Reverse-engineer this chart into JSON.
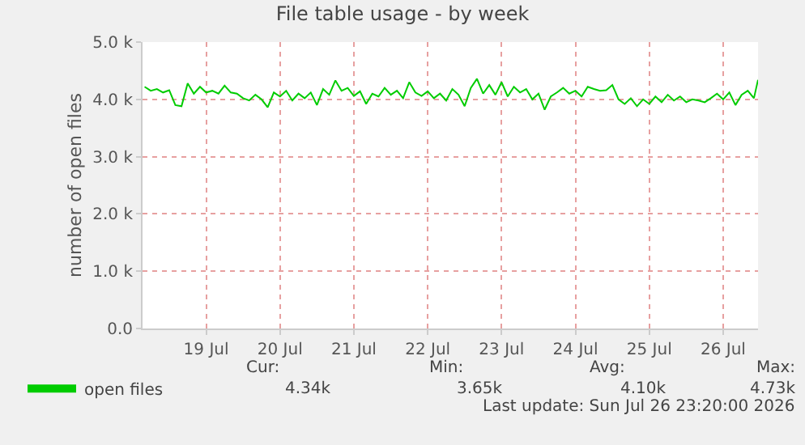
{
  "chart_data": {
    "type": "line",
    "title": "File table usage - by week",
    "ylabel": "number of open files",
    "series": [
      {
        "name": "open files",
        "color": "#00cc00",
        "x": [
          "--07-18T16:00",
          "--07-18T18:00",
          "--07-18T20:00",
          "--07-18T22:00",
          "--07-19T00:00",
          "--07-19T02:00",
          "--07-19T04:00",
          "--07-19T06:00",
          "--07-19T08:00",
          "--07-19T10:00",
          "--07-19T12:00",
          "--07-19T14:00",
          "--07-19T16:00",
          "--07-19T18:00",
          "--07-19T20:00",
          "--07-19T22:00",
          "--07-20T00:00",
          "--07-20T02:00",
          "--07-20T04:00",
          "--07-20T06:00",
          "--07-20T08:00",
          "--07-20T10:00",
          "--07-20T12:00",
          "--07-20T14:00",
          "--07-20T16:00",
          "--07-20T18:00",
          "--07-20T20:00",
          "--07-20T22:00",
          "--07-21T00:00",
          "--07-21T02:00",
          "--07-21T04:00",
          "--07-21T06:00",
          "--07-21T08:00",
          "--07-21T10:00",
          "--07-21T12:00",
          "--07-21T14:00",
          "--07-21T16:00",
          "--07-21T18:00",
          "--07-21T20:00",
          "--07-21T22:00",
          "--07-22T00:00",
          "--07-22T02:00",
          "--07-22T04:00",
          "--07-22T06:00",
          "--07-22T08:00",
          "--07-22T10:00",
          "--07-22T12:00",
          "--07-22T14:00",
          "--07-22T16:00",
          "--07-22T18:00",
          "--07-22T20:00",
          "--07-22T22:00",
          "--07-23T00:00",
          "--07-23T02:00",
          "--07-23T04:00",
          "--07-23T06:00",
          "--07-23T08:00",
          "--07-23T10:00",
          "--07-23T12:00",
          "--07-23T14:00",
          "--07-23T16:00",
          "--07-23T18:00",
          "--07-23T20:00",
          "--07-23T22:00",
          "--07-24T00:00",
          "--07-24T02:00",
          "--07-24T04:00",
          "--07-24T06:00",
          "--07-24T08:00",
          "--07-24T10:00",
          "--07-24T12:00",
          "--07-24T14:00",
          "--07-24T16:00",
          "--07-24T18:00",
          "--07-24T20:00",
          "--07-24T22:00",
          "--07-25T00:00",
          "--07-25T02:00",
          "--07-25T04:00",
          "--07-25T06:00",
          "--07-25T08:00",
          "--07-25T10:00",
          "--07-25T12:00",
          "--07-25T14:00",
          "--07-25T16:00",
          "--07-25T18:00",
          "--07-25T20:00",
          "--07-25T22:00",
          "--07-26T00:00",
          "--07-26T02:00",
          "--07-26T04:00",
          "--07-26T06:00",
          "--07-26T08:00",
          "--07-26T10:00",
          "--07-26T12:00",
          "--07-26T14:00",
          "--07-26T16:00",
          "--07-26T18:00",
          "--07-26T20:00",
          "--07-26T22:00",
          "--07-26T23:20"
        ],
        "values": [
          4220,
          4150,
          4180,
          4120,
          4160,
          3900,
          3880,
          4280,
          4100,
          4220,
          4120,
          4150,
          4100,
          4240,
          4120,
          4100,
          4020,
          3980,
          4080,
          4000,
          3860,
          4120,
          4050,
          4150,
          3980,
          4100,
          4020,
          4120,
          3900,
          4180,
          4080,
          4330,
          4150,
          4200,
          4060,
          4140,
          3920,
          4100,
          4050,
          4200,
          4080,
          4150,
          4020,
          4300,
          4120,
          4060,
          4140,
          4020,
          4100,
          3980,
          4180,
          4080,
          3880,
          4200,
          4360,
          4100,
          4250,
          4080,
          4300,
          4050,
          4220,
          4120,
          4180,
          4000,
          4100,
          3820,
          4050,
          4120,
          4200,
          4100,
          4150,
          4050,
          4220,
          4180,
          4150,
          4160,
          4250,
          4000,
          3920,
          4020,
          3880,
          4000,
          3920,
          4050,
          3950,
          4080,
          3980,
          4050,
          3950,
          4000,
          3980,
          3950,
          4020,
          4100,
          4000,
          4120,
          3900,
          4080,
          4150,
          4020,
          4340
        ]
      }
    ],
    "xlim": [
      "--07-18T15:20",
      "--07-26T23:20"
    ],
    "xticks": [
      {
        "value": "--07-19T12:00",
        "label": "19 Jul"
      },
      {
        "value": "--07-20T12:00",
        "label": "20 Jul"
      },
      {
        "value": "--07-21T12:00",
        "label": "21 Jul"
      },
      {
        "value": "--07-22T12:00",
        "label": "22 Jul"
      },
      {
        "value": "--07-23T12:00",
        "label": "23 Jul"
      },
      {
        "value": "--07-24T12:00",
        "label": "24 Jul"
      },
      {
        "value": "--07-25T12:00",
        "label": "25 Jul"
      },
      {
        "value": "--07-26T12:00",
        "label": "26 Jul"
      }
    ],
    "ylim": [
      0,
      5000
    ],
    "yticks": [
      {
        "value": 0,
        "label": "0.0"
      },
      {
        "value": 1000,
        "label": "1.0 k"
      },
      {
        "value": 2000,
        "label": "2.0 k"
      },
      {
        "value": 3000,
        "label": "3.0 k"
      },
      {
        "value": 4000,
        "label": "4.0 k"
      },
      {
        "value": 5000,
        "label": "5.0 k"
      }
    ],
    "grid": true,
    "legend": "bottom left",
    "annotations": [
      "Cur:",
      "4.34k",
      "Min:",
      "3.65k",
      "Avg:",
      "4.10k",
      "Max:",
      "4.73k",
      "Last update: Sun Jul 26 23:20:00 2026"
    ]
  }
}
